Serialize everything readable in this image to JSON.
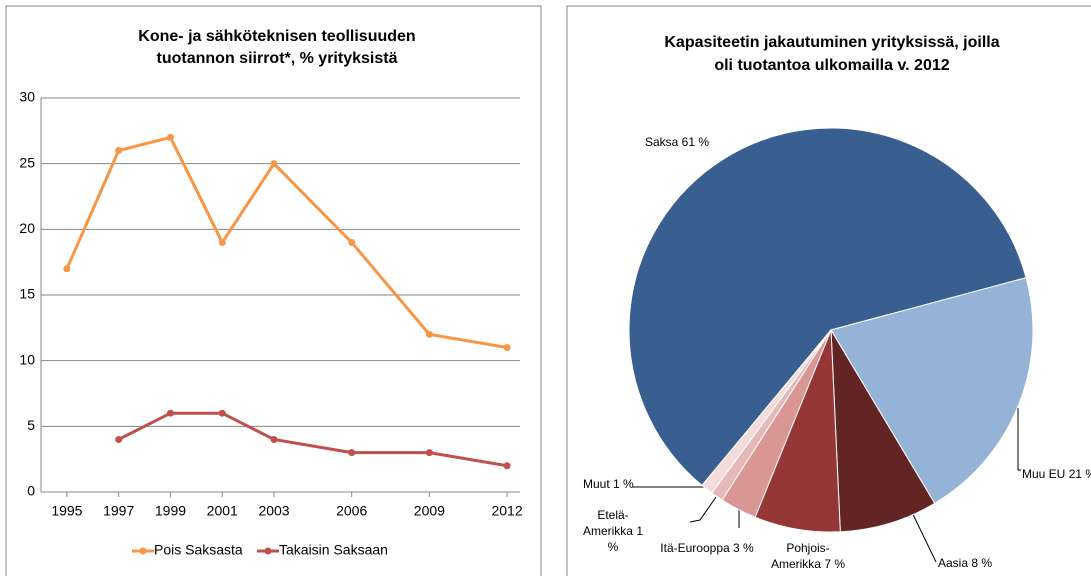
{
  "chart_data": [
    {
      "type": "line",
      "title": [
        "Kone- ja sähköteknisen teollisuuden",
        "tuotannon siirrot*, % yrityksistä"
      ],
      "x": [
        1995,
        1997,
        1999,
        2001,
        2003,
        2006,
        2009,
        2012
      ],
      "series": [
        {
          "name": "Pois Saksasta",
          "color": "#f79646",
          "values": [
            17,
            26,
            27,
            19,
            25,
            19,
            12,
            11
          ]
        },
        {
          "name": "Takaisin Saksaan",
          "color": "#c0504d",
          "values": [
            null,
            4,
            6,
            6,
            4,
            3,
            3,
            2
          ]
        }
      ],
      "xlim": [
        1994,
        2012.5
      ],
      "xticks": [
        1995,
        1997,
        1999,
        2001,
        2003,
        2006,
        2009,
        2012
      ],
      "ylim": [
        0,
        30
      ],
      "yticks": [
        0,
        5,
        10,
        15,
        20,
        25,
        30
      ],
      "grid": true,
      "legend": "bottom"
    },
    {
      "type": "pie",
      "title": [
        "Kapasiteetin jakautuminen yrityksissä, joilla",
        "oli tuotantoa ulkomailla v. 2012"
      ],
      "categories": [
        "Saksa",
        "Muu EU",
        "Aasia",
        "Pohjois-Amerikka",
        "Itä-Eurooppa",
        "Etelä-Amerikka",
        "Muut"
      ],
      "values": [
        61,
        21,
        8,
        7,
        3,
        1,
        1
      ],
      "value_labels": [
        "61 %",
        "21 %",
        "8 %",
        "7 %",
        "3 %",
        "1 %",
        "1 %"
      ],
      "colors": [
        "#385f8f",
        "#95b3d7",
        "#632523",
        "#953735",
        "#d99694",
        "#e6b9b8",
        "#f2dcdb"
      ]
    }
  ]
}
